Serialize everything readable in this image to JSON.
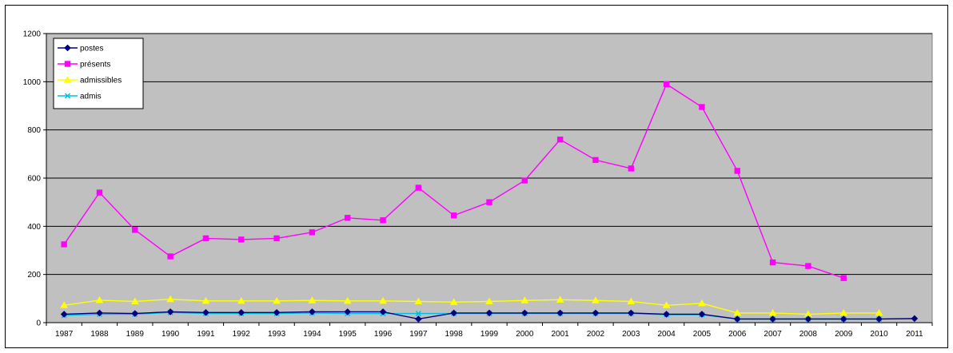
{
  "chart_data": {
    "type": "line",
    "title": "",
    "xlabel": "",
    "ylabel": "",
    "x": [
      "1987",
      "1988",
      "1989",
      "1990",
      "1991",
      "1992",
      "1993",
      "1994",
      "1995",
      "1996",
      "1997",
      "1998",
      "1999",
      "2000",
      "2001",
      "2002",
      "2003",
      "2004",
      "2005",
      "2006",
      "2007",
      "2008",
      "2009",
      "2010",
      "2011"
    ],
    "ylim": [
      0,
      1200
    ],
    "yticks": [
      0,
      200,
      400,
      600,
      800,
      1000,
      1200
    ],
    "grid": true,
    "plot_background": "#c0c0c0",
    "legend_position": "top-left",
    "series": [
      {
        "name": "postes",
        "color": "#000080",
        "marker": "diamond",
        "values": [
          35,
          40,
          38,
          45,
          42,
          42,
          42,
          45,
          45,
          45,
          15,
          40,
          40,
          40,
          40,
          40,
          40,
          35,
          35,
          15,
          15,
          15,
          15,
          15,
          17
        ]
      },
      {
        "name": "présents",
        "color": "#ff00ff",
        "marker": "square",
        "values": [
          325,
          540,
          385,
          275,
          350,
          345,
          350,
          375,
          435,
          425,
          560,
          445,
          500,
          590,
          760,
          675,
          640,
          990,
          895,
          630,
          250,
          235,
          185,
          null,
          null
        ]
      },
      {
        "name": "admissibles",
        "color": "#ffff00",
        "marker": "triangle",
        "values": [
          72,
          93,
          88,
          97,
          90,
          90,
          90,
          92,
          90,
          90,
          88,
          85,
          88,
          92,
          95,
          92,
          88,
          72,
          80,
          40,
          40,
          35,
          40,
          40,
          null
        ]
      },
      {
        "name": "admis",
        "color": "#00c0e0",
        "marker": "x",
        "values": [
          30,
          35,
          35,
          42,
          38,
          38,
          38,
          40,
          38,
          38,
          38,
          38,
          38,
          38,
          38,
          38,
          38,
          33,
          33,
          15,
          15,
          15,
          15,
          15,
          null
        ]
      }
    ]
  }
}
